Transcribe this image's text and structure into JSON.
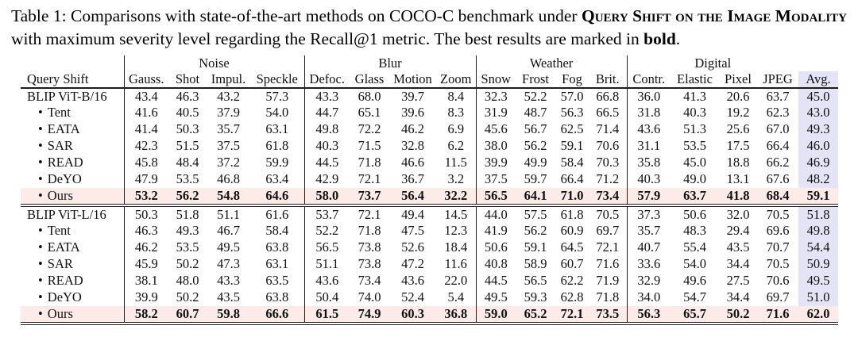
{
  "caption": {
    "part1": "Table 1: Comparisons with state-of-the-art methods on COCO-C benchmark under ",
    "smallcaps": "Query Shift on the Image Modality",
    "part2": " with maximum severity level regarding the Recall@1 metric. The best results are marked in ",
    "bold_word": "bold",
    "part3": "."
  },
  "table": {
    "corner_label": "Query Shift",
    "groups": [
      {
        "label": "Noise",
        "span": 4
      },
      {
        "label": "Blur",
        "span": 4
      },
      {
        "label": "Weather",
        "span": 4
      },
      {
        "label": "Digital",
        "span": 4
      }
    ],
    "columns": [
      "Gauss.",
      "Shot",
      "Impul.",
      "Speckle",
      "Defoc.",
      "Glass",
      "Motion",
      "Zoom",
      "Snow",
      "Frost",
      "Fog",
      "Brit.",
      "Contr.",
      "Elastic",
      "Pixel",
      "JPEG",
      "Avg."
    ],
    "colors": {
      "highlight_row": "#fcebe8",
      "avg_column": "#e5e4f6"
    },
    "blocks": [
      {
        "rows": [
          {
            "label": "BLIP ViT-B/16",
            "bullet": false,
            "bold": false,
            "highlight": false,
            "values": [
              "43.4",
              "46.3",
              "43.2",
              "57.3",
              "43.3",
              "68.0",
              "39.7",
              "8.4",
              "32.3",
              "52.2",
              "57.0",
              "66.8",
              "36.0",
              "41.3",
              "20.6",
              "63.7",
              "45.0"
            ]
          },
          {
            "label": "Tent",
            "bullet": true,
            "bold": false,
            "highlight": false,
            "values": [
              "41.6",
              "40.5",
              "37.9",
              "54.0",
              "44.7",
              "65.1",
              "39.6",
              "8.3",
              "31.9",
              "48.7",
              "56.3",
              "66.5",
              "31.8",
              "40.3",
              "19.2",
              "62.3",
              "43.0"
            ]
          },
          {
            "label": "EATA",
            "bullet": true,
            "bold": false,
            "highlight": false,
            "values": [
              "41.4",
              "50.3",
              "35.7",
              "63.1",
              "49.8",
              "72.2",
              "46.2",
              "6.9",
              "45.6",
              "56.7",
              "62.5",
              "71.4",
              "43.6",
              "51.3",
              "25.6",
              "67.0",
              "49.3"
            ]
          },
          {
            "label": "SAR",
            "bullet": true,
            "bold": false,
            "highlight": false,
            "values": [
              "42.3",
              "51.5",
              "37.5",
              "61.8",
              "40.3",
              "71.5",
              "32.8",
              "6.2",
              "38.0",
              "56.2",
              "59.1",
              "70.6",
              "31.1",
              "53.5",
              "17.5",
              "66.4",
              "46.0"
            ]
          },
          {
            "label": "READ",
            "bullet": true,
            "bold": false,
            "highlight": false,
            "values": [
              "45.8",
              "48.4",
              "37.2",
              "59.9",
              "44.5",
              "71.8",
              "46.6",
              "11.5",
              "39.9",
              "49.9",
              "58.4",
              "70.3",
              "35.8",
              "45.0",
              "18.8",
              "66.2",
              "46.9"
            ]
          },
          {
            "label": "DeYO",
            "bullet": true,
            "bold": false,
            "highlight": false,
            "values": [
              "47.9",
              "53.5",
              "46.8",
              "63.4",
              "42.9",
              "72.1",
              "36.7",
              "3.2",
              "37.5",
              "59.7",
              "66.4",
              "71.2",
              "40.3",
              "49.0",
              "13.1",
              "67.6",
              "48.2"
            ]
          },
          {
            "label": "Ours",
            "bullet": true,
            "bold": true,
            "highlight": true,
            "values": [
              "53.2",
              "56.2",
              "54.8",
              "64.6",
              "58.0",
              "73.7",
              "56.4",
              "32.2",
              "56.5",
              "64.1",
              "71.0",
              "73.4",
              "57.9",
              "63.7",
              "41.8",
              "68.4",
              "59.1"
            ]
          }
        ]
      },
      {
        "rows": [
          {
            "label": "BLIP ViT-L/16",
            "bullet": false,
            "bold": false,
            "highlight": false,
            "values": [
              "50.3",
              "51.8",
              "51.1",
              "61.6",
              "53.7",
              "72.1",
              "49.4",
              "14.5",
              "44.0",
              "57.5",
              "61.8",
              "70.5",
              "37.3",
              "50.6",
              "32.0",
              "70.5",
              "51.8"
            ]
          },
          {
            "label": "Tent",
            "bullet": true,
            "bold": false,
            "highlight": false,
            "values": [
              "46.3",
              "49.3",
              "46.7",
              "58.4",
              "52.2",
              "71.8",
              "47.5",
              "12.3",
              "41.9",
              "56.2",
              "60.9",
              "69.7",
              "35.7",
              "48.3",
              "29.4",
              "69.6",
              "49.8"
            ]
          },
          {
            "label": "EATA",
            "bullet": true,
            "bold": false,
            "highlight": false,
            "values": [
              "46.2",
              "53.5",
              "49.5",
              "63.8",
              "56.5",
              "73.8",
              "52.6",
              "18.4",
              "50.6",
              "59.1",
              "64.5",
              "72.1",
              "40.7",
              "55.4",
              "43.5",
              "70.7",
              "54.4"
            ]
          },
          {
            "label": "SAR",
            "bullet": true,
            "bold": false,
            "highlight": false,
            "values": [
              "45.9",
              "50.2",
              "47.3",
              "63.1",
              "51.1",
              "73.8",
              "47.2",
              "11.6",
              "40.8",
              "58.9",
              "60.7",
              "71.6",
              "33.6",
              "54.0",
              "34.4",
              "70.5",
              "50.9"
            ]
          },
          {
            "label": "READ",
            "bullet": true,
            "bold": false,
            "highlight": false,
            "values": [
              "38.1",
              "48.0",
              "43.3",
              "63.5",
              "43.6",
              "73.4",
              "43.6",
              "22.0",
              "44.5",
              "56.5",
              "62.2",
              "71.9",
              "32.9",
              "49.6",
              "27.5",
              "70.6",
              "49.5"
            ]
          },
          {
            "label": "DeYO",
            "bullet": true,
            "bold": false,
            "highlight": false,
            "values": [
              "39.9",
              "50.2",
              "43.5",
              "63.8",
              "50.4",
              "74.0",
              "52.4",
              "5.4",
              "49.5",
              "59.3",
              "62.8",
              "71.8",
              "34.0",
              "54.7",
              "34.4",
              "69.7",
              "51.0"
            ]
          },
          {
            "label": "Ours",
            "bullet": true,
            "bold": true,
            "highlight": true,
            "values": [
              "58.2",
              "60.7",
              "59.8",
              "66.6",
              "61.5",
              "74.9",
              "60.3",
              "36.8",
              "59.0",
              "65.2",
              "72.1",
              "73.5",
              "56.3",
              "65.7",
              "50.2",
              "71.6",
              "62.0"
            ]
          }
        ]
      }
    ]
  }
}
